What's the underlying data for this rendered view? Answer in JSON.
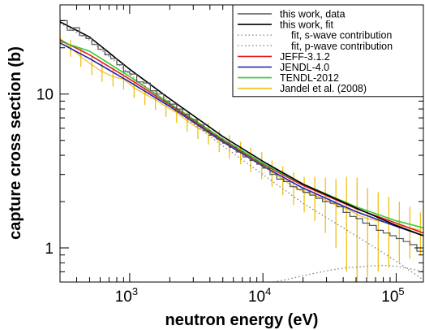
{
  "chart_data": {
    "type": "line",
    "xlabel": "neutron energy (eV)",
    "ylabel": "capture cross section (b)",
    "xscale": "log",
    "yscale": "log",
    "xlim": [
      300,
      160000
    ],
    "ylim": [
      0.6,
      38
    ],
    "x_ticks": [
      {
        "base": "10",
        "exp": "3",
        "value": 1000
      },
      {
        "base": "10",
        "exp": "4",
        "value": 10000
      },
      {
        "base": "10",
        "exp": "5",
        "value": 100000
      }
    ],
    "y_ticks": [
      {
        "label": "1",
        "value": 1
      },
      {
        "label": "10",
        "value": 10
      }
    ],
    "legend_position": "top-right",
    "legend": [
      {
        "label": "this work, data",
        "color": "#555555",
        "style": "solid"
      },
      {
        "label": "this work, fit",
        "color": "#000000",
        "style": "solid"
      },
      {
        "label": "fit, s-wave contribution",
        "color": "#888888",
        "style": "dotted"
      },
      {
        "label": "fit, p-wave contribution",
        "color": "#888888",
        "style": "dotted"
      },
      {
        "label": "JEFF-3.1.2",
        "color": "#e41a1c",
        "style": "solid"
      },
      {
        "label": "JENDL-4.0",
        "color": "#1f1fb4",
        "style": "solid"
      },
      {
        "label": "TENDL-2012",
        "color": "#33cc33",
        "style": "solid"
      },
      {
        "label": "Jandel et al. (2008)",
        "color": "#f0c010",
        "style": "solid"
      }
    ],
    "series": [
      {
        "name": "this work, data",
        "color": "#555555",
        "kind": "step",
        "x": [
          300,
          340,
          380,
          420,
          470,
          520,
          580,
          650,
          720,
          800,
          900,
          1000,
          1130,
          1270,
          1430,
          1600,
          1800,
          2000,
          2250,
          2500,
          2800,
          3200,
          3600,
          4000,
          4500,
          5000,
          5600,
          6300,
          7100,
          8000,
          9000,
          10000,
          11300,
          12700,
          14300,
          16000,
          18000,
          20000,
          22500,
          25000,
          28000,
          32000,
          36000,
          40000,
          45000,
          50000,
          56000,
          63000,
          71000,
          80000,
          90000,
          100000,
          113000,
          127000,
          143000,
          160000
        ],
        "y": [
          30,
          26,
          27,
          24,
          23,
          21,
          19.5,
          18,
          17,
          15.5,
          14,
          13.5,
          12,
          11.8,
          10.5,
          10,
          9,
          8.6,
          8,
          7.4,
          6.8,
          6.3,
          5.8,
          5.4,
          5.1,
          4.8,
          4.5,
          4.2,
          3.9,
          3.7,
          3.5,
          3.3,
          3.0,
          2.8,
          2.7,
          2.5,
          2.4,
          2.3,
          2.2,
          2.1,
          2.0,
          1.95,
          1.85,
          1.7,
          1.6,
          1.55,
          1.45,
          1.4,
          1.3,
          1.25,
          1.2,
          1.15,
          1.1,
          1.05,
          0.95,
          1.0
        ]
      },
      {
        "name": "this work, fit",
        "color": "#000000",
        "x": [
          300,
          500,
          1000,
          2000,
          5000,
          10000,
          20000,
          50000,
          100000,
          160000
        ],
        "y": [
          29.5,
          23.5,
          14.5,
          9.3,
          5.3,
          3.65,
          2.6,
          1.82,
          1.4,
          1.2
        ]
      },
      {
        "name": "fit, s-wave contribution",
        "color": "#888888",
        "dash": "dotted",
        "x": [
          300,
          500,
          1000,
          2000,
          5000,
          10000,
          20000,
          50000,
          100000,
          160000
        ],
        "y": [
          29,
          22.5,
          13.5,
          8.4,
          4.6,
          3.0,
          1.95,
          1.2,
          0.82,
          0.62
        ]
      },
      {
        "name": "fit, p-wave contribution",
        "color": "#888888",
        "dash": "dotted",
        "x": [
          12000,
          16000,
          20000,
          30000,
          40000,
          60000,
          80000,
          100000,
          130000,
          160000
        ],
        "y": [
          0.6,
          0.63,
          0.66,
          0.71,
          0.74,
          0.76,
          0.77,
          0.76,
          0.73,
          0.7
        ]
      },
      {
        "name": "JEFF-3.1.2",
        "color": "#e41a1c",
        "x": [
          300,
          500,
          1000,
          2000,
          5000,
          10000,
          20000,
          50000,
          100000,
          160000
        ],
        "y": [
          22.5,
          18,
          12.5,
          8.5,
          5.0,
          3.5,
          2.55,
          1.8,
          1.45,
          1.25
        ]
      },
      {
        "name": "JENDL-4.0",
        "color": "#1f1fb4",
        "x": [
          300,
          500,
          1000,
          2000,
          5000,
          10000,
          20000,
          50000,
          100000,
          160000
        ],
        "y": [
          21.5,
          17,
          12,
          8.3,
          4.9,
          3.4,
          2.45,
          1.72,
          1.38,
          1.2
        ]
      },
      {
        "name": "TENDL-2012",
        "color": "#33cc33",
        "x": [
          300,
          500,
          1000,
          2000,
          5000,
          10000,
          20000,
          50000,
          100000,
          160000
        ],
        "y": [
          22,
          19,
          13,
          8.7,
          5.1,
          3.55,
          2.6,
          1.85,
          1.5,
          1.35
        ]
      },
      {
        "name": "Jandel et al. (2008)",
        "color": "#f0c010",
        "kind": "errorbars",
        "x": [
          300,
          360,
          430,
          520,
          620,
          750,
          900,
          1080,
          1300,
          1560,
          1870,
          2250,
          2700,
          3250,
          3900,
          4700,
          5600,
          6800,
          8100,
          9800,
          11700,
          14100,
          17000,
          20400,
          24500,
          29400,
          35300,
          42400,
          50900,
          61000,
          73300,
          88000,
          105600,
          126700,
          152000
        ],
        "y": [
          23,
          20,
          17.5,
          15.5,
          14,
          13,
          12.5,
          11,
          10,
          9.2,
          8.3,
          7.6,
          6.7,
          6.0,
          5.6,
          5.0,
          4.6,
          4.2,
          3.8,
          3.5,
          3.1,
          2.8,
          2.5,
          2.3,
          2.2,
          2.05,
          1.9,
          1.8,
          1.65,
          1.55,
          1.5,
          1.45,
          1.4,
          1.35,
          1.3
        ],
        "err": [
          3,
          2.5,
          2.5,
          2.2,
          2,
          1.8,
          1.8,
          1.6,
          1.5,
          1.3,
          1.2,
          1.1,
          1.0,
          0.9,
          0.9,
          0.8,
          0.8,
          0.7,
          0.7,
          0.7,
          0.6,
          0.6,
          0.6,
          0.6,
          0.7,
          0.8,
          0.9,
          1.1,
          1.2,
          0.9,
          0.8,
          0.7,
          0.6,
          0.5,
          0.4
        ]
      }
    ]
  }
}
